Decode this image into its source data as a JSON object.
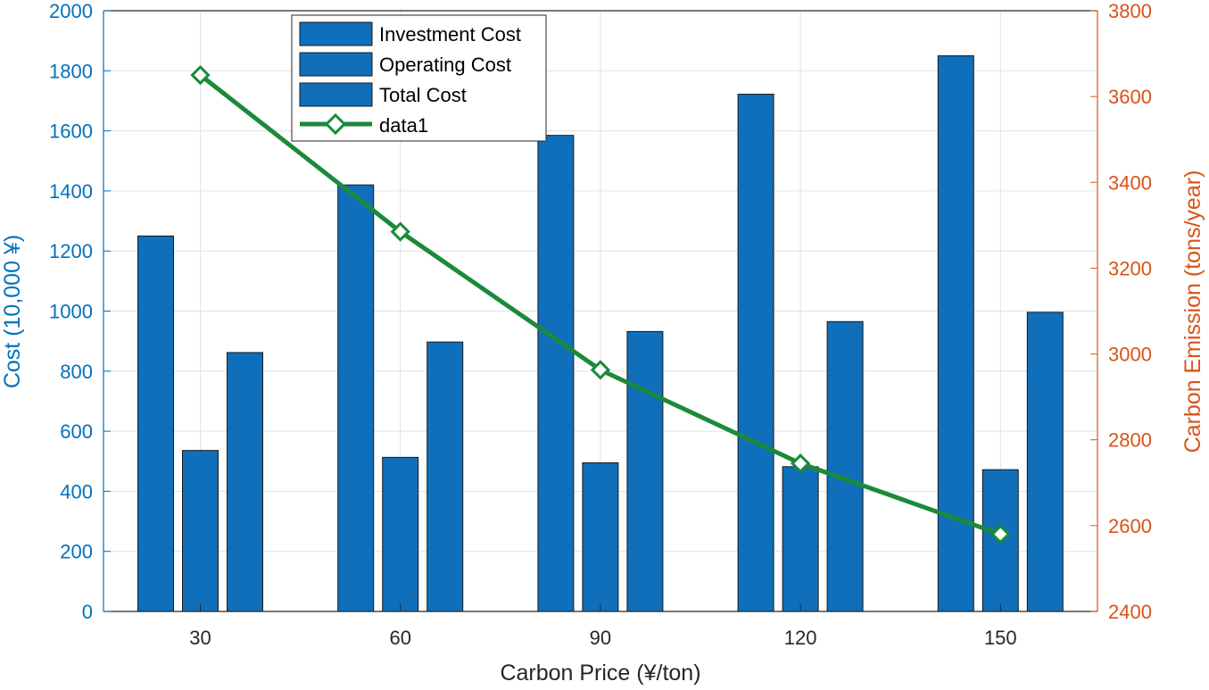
{
  "chart_data": {
    "type": "bar+line",
    "categories": [
      "30",
      "60",
      "90",
      "120",
      "150"
    ],
    "xlabel": "Carbon Price (¥/ton)",
    "ylabel_left": "Cost (10,000 ¥)",
    "ylabel_right": "Carbon Emission (tons/year)",
    "ylim_left": [
      0,
      2000
    ],
    "ylim_right": [
      2400,
      3800
    ],
    "yticks_left": [
      "0",
      "200",
      "400",
      "600",
      "800",
      "1000",
      "1200",
      "1400",
      "1600",
      "1800",
      "2000"
    ],
    "yticks_right": [
      "2400",
      "2600",
      "2800",
      "3000",
      "3200",
      "3400",
      "3600",
      "3800"
    ],
    "grid": true,
    "legend_position": "top-center",
    "bar_series": [
      {
        "name": "Investment Cost",
        "values": [
          1250,
          1420,
          1585,
          1722,
          1850
        ]
      },
      {
        "name": "Operating Cost",
        "values": [
          536,
          513,
          495,
          482,
          472
        ]
      },
      {
        "name": "Total Cost",
        "values": [
          862,
          897,
          932,
          965,
          996
        ]
      }
    ],
    "line_series": [
      {
        "name": "data1",
        "axis": "right",
        "values": [
          3650,
          3285,
          2963,
          2745,
          2580
        ]
      }
    ]
  },
  "colors": {
    "bar": "#0F6FBA",
    "bar_edge": "#1A1A1A",
    "line": "#1B8A3A",
    "left_axis": "#0072BD",
    "right_axis": "#D95319",
    "grid": "#DCE3EA"
  }
}
